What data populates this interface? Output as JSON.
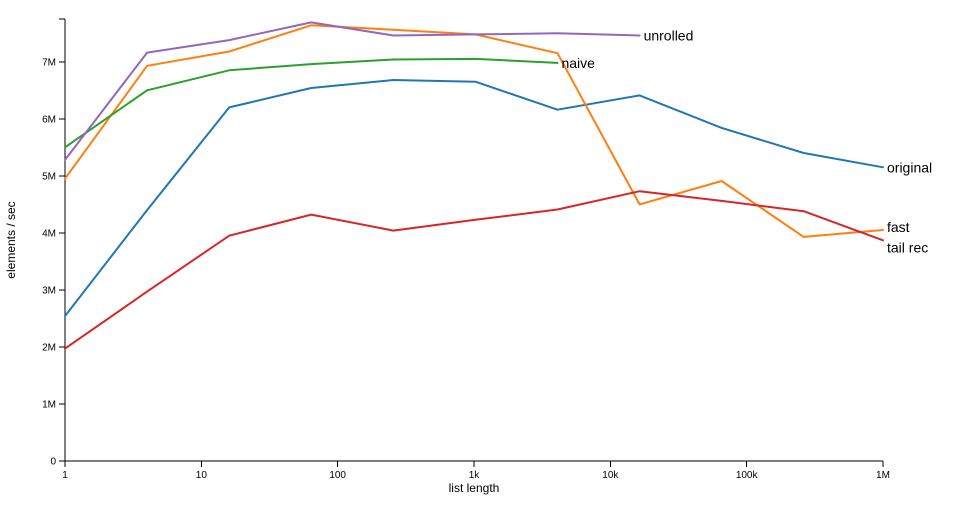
{
  "chart_data": {
    "type": "line",
    "title": "",
    "xlabel": "list length",
    "ylabel": "elements / sec",
    "x_scale": "log",
    "xlim": [
      1,
      1000000
    ],
    "ylim": [
      0,
      7750000
    ],
    "grid": false,
    "legend": "inline-end-labels",
    "x_ticks": [
      {
        "value": 1,
        "label": "1"
      },
      {
        "value": 10,
        "label": "10"
      },
      {
        "value": 100,
        "label": "100"
      },
      {
        "value": 1000,
        "label": "1k"
      },
      {
        "value": 10000,
        "label": "10k"
      },
      {
        "value": 100000,
        "label": "100k"
      },
      {
        "value": 1000000,
        "label": "1M"
      }
    ],
    "y_ticks": [
      {
        "value": 0,
        "label": "0"
      },
      {
        "value": 1000000,
        "label": "1M"
      },
      {
        "value": 2000000,
        "label": "2M"
      },
      {
        "value": 3000000,
        "label": "3M"
      },
      {
        "value": 4000000,
        "label": "4M"
      },
      {
        "value": 5000000,
        "label": "5M"
      },
      {
        "value": 6000000,
        "label": "6M"
      },
      {
        "value": 7000000,
        "label": "7M"
      }
    ],
    "series": [
      {
        "name": "original",
        "color": "#1f77b4",
        "x": [
          1,
          4,
          16,
          64,
          256,
          1024,
          4096,
          16384,
          65536,
          262144,
          1000000
        ],
        "y": [
          2540000,
          4400000,
          6200000,
          6540000,
          6680000,
          6650000,
          6160000,
          6410000,
          5840000,
          5400000,
          5150000
        ]
      },
      {
        "name": "fast",
        "color": "#ff7f0e",
        "x": [
          1,
          4,
          16,
          64,
          256,
          1024,
          4096,
          16384,
          65536,
          262144,
          1000000
        ],
        "y": [
          4950000,
          6930000,
          7180000,
          7640000,
          7560000,
          7480000,
          7150000,
          4500000,
          4910000,
          3930000,
          4050000
        ]
      },
      {
        "name": "naive",
        "color": "#2ca02c",
        "x": [
          1,
          4,
          16,
          64,
          256,
          1024,
          4096
        ],
        "y": [
          5500000,
          6500000,
          6850000,
          6960000,
          7040000,
          7050000,
          6980000
        ]
      },
      {
        "name": "tail rec",
        "color": "#d62728",
        "x": [
          1,
          4,
          16,
          64,
          256,
          1024,
          4096,
          16384,
          65536,
          262144,
          1000000
        ],
        "y": [
          1970000,
          2970000,
          3950000,
          4320000,
          4040000,
          4230000,
          4410000,
          4730000,
          4560000,
          4380000,
          3870000
        ]
      },
      {
        "name": "unrolled",
        "color": "#9467bd",
        "x": [
          1,
          4,
          16,
          64,
          256,
          1024,
          4096,
          16384
        ],
        "y": [
          5280000,
          7160000,
          7380000,
          7690000,
          7460000,
          7480000,
          7500000,
          7460000
        ]
      }
    ]
  }
}
